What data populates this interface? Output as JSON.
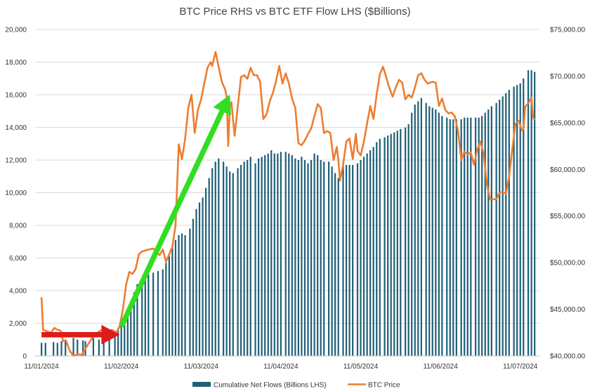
{
  "colors": {
    "bar": "#1f5f78",
    "line": "#ed7d31",
    "grid": "#d9d9d9",
    "green_arrow": "#33dd22",
    "red_arrow": "#e01b1b"
  },
  "chart_data": {
    "type": "bar",
    "title": "BTC Price RHS vs BTC ETF Flow LHS ($Billions)",
    "xlabel": "",
    "ylabel_left": "",
    "ylabel_right": "",
    "grid": true,
    "legend_position": "bottom",
    "x_tick_labels": [
      "11/01/2024",
      "11/02/2024",
      "11/03/2024",
      "11/04/2024",
      "11/05/2024",
      "11/06/2024",
      "11/07/2024"
    ],
    "y_left": {
      "min": 0,
      "max": 20000,
      "ticks": [
        "0",
        "2,000",
        "4,000",
        "6,000",
        "8,000",
        "10,000",
        "12,000",
        "14,000",
        "16,000",
        "18,000",
        "20,000"
      ]
    },
    "y_right": {
      "min": 40000,
      "max": 75000,
      "ticks": [
        "$40,000.00",
        "$45,000.00",
        "$50,000.00",
        "$55,000.00",
        "$60,000.00",
        "$65,000.00",
        "$70,000.00",
        "$75,000.00"
      ]
    },
    "series": [
      {
        "name": "Cumulative Net Flows (Billions LHS)",
        "type": "bar",
        "axis": "left",
        "points": [
          [
            0.0,
            800
          ],
          [
            0.05,
            800
          ],
          [
            0.15,
            850
          ],
          [
            0.2,
            800
          ],
          [
            0.25,
            900
          ],
          [
            0.3,
            1000
          ],
          [
            0.4,
            1100
          ],
          [
            0.45,
            1000
          ],
          [
            0.52,
            950
          ],
          [
            0.55,
            900
          ],
          [
            0.65,
            1100
          ],
          [
            0.72,
            1000
          ],
          [
            0.78,
            1100
          ],
          [
            0.85,
            1200
          ],
          [
            0.92,
            1500
          ],
          [
            0.96,
            1700
          ],
          [
            1.0,
            1900
          ],
          [
            1.04,
            2300
          ],
          [
            1.08,
            2800
          ],
          [
            1.12,
            3300
          ],
          [
            1.16,
            3900
          ],
          [
            1.2,
            4400
          ],
          [
            1.26,
            4700
          ],
          [
            1.3,
            4900
          ],
          [
            1.34,
            5000
          ],
          [
            1.4,
            5100
          ],
          [
            1.46,
            5200
          ],
          [
            1.52,
            5300
          ],
          [
            1.56,
            5700
          ],
          [
            1.6,
            6100
          ],
          [
            1.64,
            6600
          ],
          [
            1.68,
            7100
          ],
          [
            1.72,
            7400
          ],
          [
            1.76,
            7500
          ],
          [
            1.8,
            7400
          ],
          [
            1.86,
            7800
          ],
          [
            1.9,
            8400
          ],
          [
            1.94,
            9000
          ],
          [
            1.98,
            9400
          ],
          [
            2.02,
            9700
          ],
          [
            2.06,
            10300
          ],
          [
            2.1,
            10900
          ],
          [
            2.14,
            11500
          ],
          [
            2.18,
            11900
          ],
          [
            2.22,
            12100
          ],
          [
            2.28,
            11900
          ],
          [
            2.32,
            11600
          ],
          [
            2.36,
            11300
          ],
          [
            2.4,
            11200
          ],
          [
            2.46,
            11500
          ],
          [
            2.5,
            11700
          ],
          [
            2.54,
            11900
          ],
          [
            2.58,
            12000
          ],
          [
            2.62,
            12200
          ],
          [
            2.68,
            11800
          ],
          [
            2.72,
            12100
          ],
          [
            2.76,
            12200
          ],
          [
            2.8,
            12300
          ],
          [
            2.84,
            12400
          ],
          [
            2.88,
            12600
          ],
          [
            2.92,
            12400
          ],
          [
            2.96,
            12400
          ],
          [
            3.0,
            12500
          ],
          [
            3.06,
            12500
          ],
          [
            3.1,
            12400
          ],
          [
            3.14,
            12300
          ],
          [
            3.18,
            12100
          ],
          [
            3.22,
            12000
          ],
          [
            3.26,
            12200
          ],
          [
            3.3,
            12000
          ],
          [
            3.34,
            11800
          ],
          [
            3.38,
            12000
          ],
          [
            3.42,
            12400
          ],
          [
            3.46,
            12300
          ],
          [
            3.5,
            12000
          ],
          [
            3.54,
            11900
          ],
          [
            3.6,
            11900
          ],
          [
            3.64,
            11600
          ],
          [
            3.68,
            11200
          ],
          [
            3.72,
            10900
          ],
          [
            3.78,
            11800
          ],
          [
            3.82,
            11700
          ],
          [
            3.86,
            11700
          ],
          [
            3.9,
            11700
          ],
          [
            3.96,
            11800
          ],
          [
            4.0,
            12000
          ],
          [
            4.04,
            12200
          ],
          [
            4.08,
            12400
          ],
          [
            4.12,
            12600
          ],
          [
            4.16,
            12800
          ],
          [
            4.2,
            13100
          ],
          [
            4.24,
            13300
          ],
          [
            4.3,
            13400
          ],
          [
            4.34,
            13500
          ],
          [
            4.38,
            13600
          ],
          [
            4.42,
            13700
          ],
          [
            4.46,
            13800
          ],
          [
            4.5,
            13900
          ],
          [
            4.56,
            14000
          ],
          [
            4.6,
            14200
          ],
          [
            4.64,
            14900
          ],
          [
            4.68,
            15400
          ],
          [
            4.72,
            15600
          ],
          [
            4.76,
            15800
          ],
          [
            4.82,
            15500
          ],
          [
            4.86,
            15300
          ],
          [
            4.9,
            15200
          ],
          [
            4.94,
            15100
          ],
          [
            4.98,
            14900
          ],
          [
            5.02,
            14700
          ],
          [
            5.08,
            14600
          ],
          [
            5.12,
            14500
          ],
          [
            5.16,
            14500
          ],
          [
            5.2,
            14500
          ],
          [
            5.26,
            14500
          ],
          [
            5.3,
            14600
          ],
          [
            5.34,
            14600
          ],
          [
            5.38,
            14600
          ],
          [
            5.44,
            14600
          ],
          [
            5.48,
            14600
          ],
          [
            5.52,
            14700
          ],
          [
            5.56,
            14900
          ],
          [
            5.6,
            15100
          ],
          [
            5.64,
            15300
          ],
          [
            5.7,
            15500
          ],
          [
            5.74,
            15700
          ],
          [
            5.78,
            15900
          ],
          [
            5.82,
            16100
          ],
          [
            5.86,
            16300
          ],
          [
            5.92,
            16500
          ],
          [
            5.96,
            16600
          ],
          [
            6.0,
            16700
          ],
          [
            6.04,
            17000
          ],
          [
            6.1,
            17500
          ],
          [
            6.14,
            17500
          ],
          [
            6.18,
            17400
          ]
        ]
      },
      {
        "name": "BTC Price",
        "type": "line",
        "axis": "right",
        "points": [
          [
            0.0,
            46300
          ],
          [
            0.02,
            42800
          ],
          [
            0.08,
            42600
          ],
          [
            0.12,
            42500
          ],
          [
            0.16,
            43000
          ],
          [
            0.2,
            42800
          ],
          [
            0.24,
            42700
          ],
          [
            0.27,
            41600
          ],
          [
            0.31,
            41600
          ],
          [
            0.35,
            40600
          ],
          [
            0.4,
            40000
          ],
          [
            0.45,
            40200
          ],
          [
            0.5,
            40100
          ],
          [
            0.54,
            40600
          ],
          [
            0.58,
            41200
          ],
          [
            0.64,
            42000
          ],
          [
            0.7,
            42500
          ],
          [
            0.76,
            42800
          ],
          [
            0.82,
            42400
          ],
          [
            0.88,
            42800
          ],
          [
            0.94,
            42500
          ],
          [
            0.98,
            43200
          ],
          [
            1.02,
            45000
          ],
          [
            1.06,
            47600
          ],
          [
            1.1,
            49000
          ],
          [
            1.14,
            48800
          ],
          [
            1.18,
            49300
          ],
          [
            1.22,
            50900
          ],
          [
            1.26,
            51200
          ],
          [
            1.3,
            51300
          ],
          [
            1.34,
            51400
          ],
          [
            1.4,
            51500
          ],
          [
            1.44,
            51200
          ],
          [
            1.48,
            50800
          ],
          [
            1.52,
            51400
          ],
          [
            1.56,
            50100
          ],
          [
            1.6,
            50900
          ],
          [
            1.64,
            51700
          ],
          [
            1.68,
            54000
          ],
          [
            1.72,
            62700
          ],
          [
            1.76,
            61100
          ],
          [
            1.8,
            63300
          ],
          [
            1.84,
            66600
          ],
          [
            1.88,
            68000
          ],
          [
            1.92,
            63900
          ],
          [
            1.96,
            66400
          ],
          [
            2.0,
            67500
          ],
          [
            2.04,
            69200
          ],
          [
            2.08,
            70900
          ],
          [
            2.12,
            71500
          ],
          [
            2.14,
            71100
          ],
          [
            2.18,
            72600
          ],
          [
            2.22,
            71000
          ],
          [
            2.26,
            69400
          ],
          [
            2.3,
            68600
          ],
          [
            2.32,
            67800
          ],
          [
            2.34,
            62500
          ],
          [
            2.36,
            66700
          ],
          [
            2.38,
            67200
          ],
          [
            2.42,
            63600
          ],
          [
            2.46,
            66800
          ],
          [
            2.5,
            69900
          ],
          [
            2.54,
            70100
          ],
          [
            2.58,
            69700
          ],
          [
            2.62,
            70900
          ],
          [
            2.66,
            70100
          ],
          [
            2.7,
            70100
          ],
          [
            2.74,
            69400
          ],
          [
            2.78,
            65400
          ],
          [
            2.82,
            65900
          ],
          [
            2.86,
            67300
          ],
          [
            2.9,
            68200
          ],
          [
            2.94,
            69500
          ],
          [
            2.98,
            71100
          ],
          [
            3.02,
            69200
          ],
          [
            3.06,
            70300
          ],
          [
            3.1,
            69200
          ],
          [
            3.14,
            67600
          ],
          [
            3.18,
            66600
          ],
          [
            3.22,
            62800
          ],
          [
            3.26,
            62600
          ],
          [
            3.3,
            63100
          ],
          [
            3.34,
            63800
          ],
          [
            3.38,
            64400
          ],
          [
            3.42,
            65700
          ],
          [
            3.46,
            67000
          ],
          [
            3.5,
            66600
          ],
          [
            3.54,
            63900
          ],
          [
            3.58,
            64100
          ],
          [
            3.62,
            63900
          ],
          [
            3.66,
            61000
          ],
          [
            3.7,
            62400
          ],
          [
            3.72,
            61100
          ],
          [
            3.74,
            58800
          ],
          [
            3.78,
            60500
          ],
          [
            3.82,
            63000
          ],
          [
            3.86,
            63300
          ],
          [
            3.9,
            61100
          ],
          [
            3.94,
            63800
          ],
          [
            3.96,
            62000
          ],
          [
            4.0,
            61500
          ],
          [
            4.04,
            63000
          ],
          [
            4.08,
            64900
          ],
          [
            4.12,
            66800
          ],
          [
            4.16,
            65400
          ],
          [
            4.2,
            68000
          ],
          [
            4.24,
            70200
          ],
          [
            4.28,
            71000
          ],
          [
            4.32,
            69900
          ],
          [
            4.36,
            68700
          ],
          [
            4.4,
            67800
          ],
          [
            4.44,
            68800
          ],
          [
            4.48,
            69600
          ],
          [
            4.52,
            69300
          ],
          [
            4.56,
            67500
          ],
          [
            4.6,
            68000
          ],
          [
            4.64,
            67700
          ],
          [
            4.68,
            68800
          ],
          [
            4.72,
            70100
          ],
          [
            4.76,
            70300
          ],
          [
            4.8,
            69600
          ],
          [
            4.84,
            69200
          ],
          [
            4.9,
            69400
          ],
          [
            4.94,
            69300
          ],
          [
            4.98,
            66800
          ],
          [
            5.02,
            67600
          ],
          [
            5.06,
            66400
          ],
          [
            5.1,
            66000
          ],
          [
            5.14,
            66100
          ],
          [
            5.18,
            65700
          ],
          [
            5.22,
            64100
          ],
          [
            5.26,
            61000
          ],
          [
            5.3,
            61900
          ],
          [
            5.34,
            61600
          ],
          [
            5.38,
            61800
          ],
          [
            5.42,
            60500
          ],
          [
            5.46,
            62100
          ],
          [
            5.5,
            63000
          ],
          [
            5.54,
            61700
          ],
          [
            5.58,
            58500
          ],
          [
            5.62,
            56800
          ],
          [
            5.66,
            56800
          ],
          [
            5.7,
            56800
          ],
          [
            5.74,
            57500
          ],
          [
            5.78,
            57600
          ],
          [
            5.82,
            57400
          ],
          [
            5.86,
            59200
          ],
          [
            5.9,
            62200
          ],
          [
            5.94,
            64900
          ],
          [
            5.98,
            65200
          ],
          [
            6.02,
            64200
          ],
          [
            6.04,
            64300
          ],
          [
            6.06,
            66700
          ],
          [
            6.1,
            67100
          ],
          [
            6.14,
            67700
          ],
          [
            6.16,
            65600
          ],
          [
            6.18,
            65300
          ]
        ]
      }
    ],
    "annotations": [
      {
        "type": "arrow",
        "color": "green",
        "from": [
          1.0,
          1800
        ],
        "to": [
          2.36,
          16000
        ]
      },
      {
        "type": "arrow",
        "color": "red",
        "from": [
          0.0,
          1300
        ],
        "to": [
          0.98,
          1300
        ]
      }
    ]
  }
}
